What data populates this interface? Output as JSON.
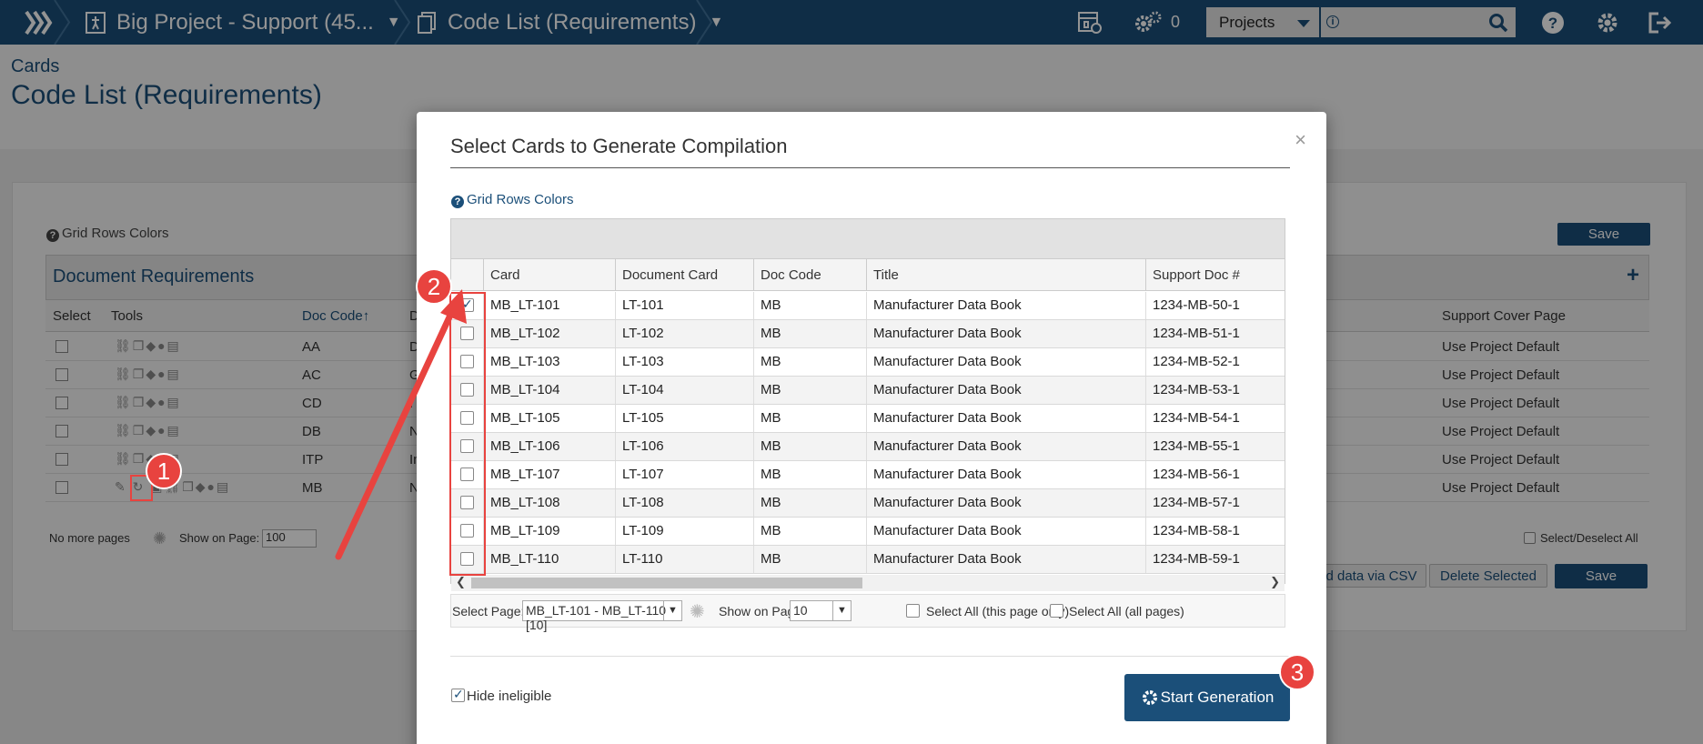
{
  "topbar": {
    "project_label": "Big Project - Support (45...",
    "codelist_label": "Code List (Requirements)",
    "gear_count": "0",
    "projects_select": "Projects"
  },
  "page": {
    "subtitle": "Cards",
    "title": "Code List (Requirements)",
    "grid_rows_colors": "Grid Rows Colors",
    "save_label": "Save",
    "grid_title": "Document Requirements",
    "columns": {
      "select": "Select",
      "tools": "Tools",
      "doc_code": "Doc Code↑",
      "d": "D",
      "support_cover": "Support Cover Page"
    },
    "rows": [
      {
        "code": "AA",
        "d": "D",
        "cover": "Use Project Default"
      },
      {
        "code": "AC",
        "d": "G",
        "cover": "Use Project Default"
      },
      {
        "code": "CD",
        "d": "I",
        "cover": "Use Project Default"
      },
      {
        "code": "DB",
        "d": "N",
        "cover": "Use Project Default"
      },
      {
        "code": "ITP",
        "d": "In",
        "cover": "Use Project Default"
      },
      {
        "code": "MB",
        "d": "N",
        "cover": "Use Project Default"
      }
    ],
    "no_more_pages": "No more pages",
    "show_on_page": "Show on Page:",
    "show_value": "100",
    "select_deselect_all": "Select/Deselect All",
    "csv_label": "d data via CSV",
    "delete_selected": "Delete Selected"
  },
  "modal": {
    "title": "Select Cards to Generate Compilation",
    "close": "×",
    "grid_rows_colors": "Grid Rows Colors",
    "columns": [
      "Card",
      "Document Card",
      "Doc Code",
      "Title",
      "Support Doc #"
    ],
    "rows": [
      {
        "card": "MB_LT-101",
        "doc_card": "LT-101",
        "doc_code": "MB",
        "title": "Manufacturer Data Book",
        "support": "1234-MB-50-1",
        "checked": true
      },
      {
        "card": "MB_LT-102",
        "doc_card": "LT-102",
        "doc_code": "MB",
        "title": "Manufacturer Data Book",
        "support": "1234-MB-51-1",
        "checked": false
      },
      {
        "card": "MB_LT-103",
        "doc_card": "LT-103",
        "doc_code": "MB",
        "title": "Manufacturer Data Book",
        "support": "1234-MB-52-1",
        "checked": false
      },
      {
        "card": "MB_LT-104",
        "doc_card": "LT-104",
        "doc_code": "MB",
        "title": "Manufacturer Data Book",
        "support": "1234-MB-53-1",
        "checked": false
      },
      {
        "card": "MB_LT-105",
        "doc_card": "LT-105",
        "doc_code": "MB",
        "title": "Manufacturer Data Book",
        "support": "1234-MB-54-1",
        "checked": false
      },
      {
        "card": "MB_LT-106",
        "doc_card": "LT-106",
        "doc_code": "MB",
        "title": "Manufacturer Data Book",
        "support": "1234-MB-55-1",
        "checked": false
      },
      {
        "card": "MB_LT-107",
        "doc_card": "LT-107",
        "doc_code": "MB",
        "title": "Manufacturer Data Book",
        "support": "1234-MB-56-1",
        "checked": false
      },
      {
        "card": "MB_LT-108",
        "doc_card": "LT-108",
        "doc_code": "MB",
        "title": "Manufacturer Data Book",
        "support": "1234-MB-57-1",
        "checked": false
      },
      {
        "card": "MB_LT-109",
        "doc_card": "LT-109",
        "doc_code": "MB",
        "title": "Manufacturer Data Book",
        "support": "1234-MB-58-1",
        "checked": false
      },
      {
        "card": "MB_LT-110",
        "doc_card": "LT-110",
        "doc_code": "MB",
        "title": "Manufacturer Data Book",
        "support": "1234-MB-59-1",
        "checked": false
      }
    ],
    "pager": {
      "select_page_label": "Select Page:",
      "select_page_value": "MB_LT-101 - MB_LT-110 [10]",
      "show_on_page_label": "Show on Page:",
      "show_on_page_value": "10",
      "select_all_page": "Select All (this page only)",
      "select_all_pages": "Select All (all pages)"
    },
    "hide_ineligible": "Hide ineligible",
    "hide_ineligible_checked": true,
    "start_generation": "Start Generation"
  },
  "annotations": {
    "badge1": "1",
    "badge2": "2",
    "badge3": "3",
    "color": "#e8433f"
  },
  "colors": {
    "brand": "#1b4f79"
  }
}
